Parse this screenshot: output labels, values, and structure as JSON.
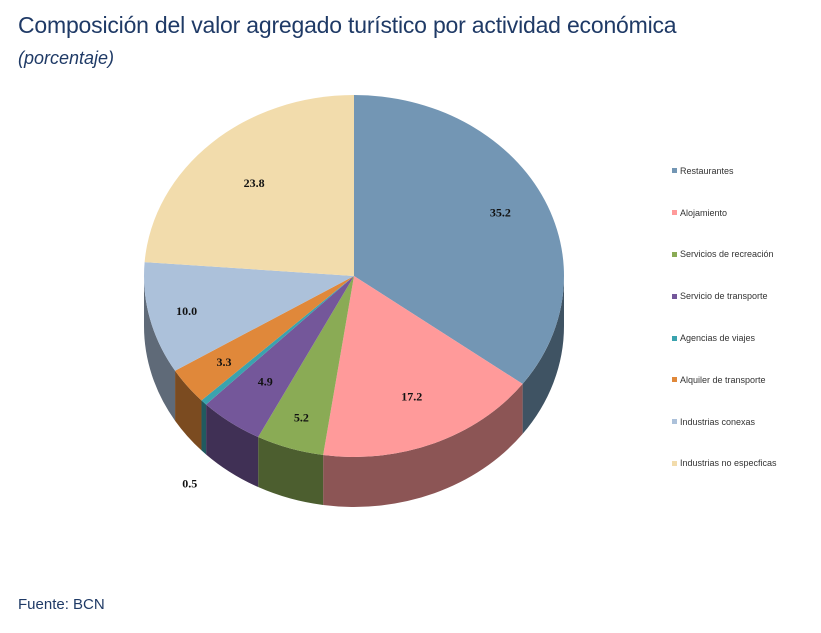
{
  "title": "Composición del valor agregado turístico por actividad económica",
  "subtitle": "(porcentaje)",
  "source": "Fuente: BCN",
  "chart_data": {
    "type": "pie",
    "title": "Composición del valor agregado turístico por actividad económica",
    "subtitle": "(porcentaje)",
    "legend_position": "right",
    "three_d": true,
    "categories": [
      "Restaurantes",
      "Alojamiento",
      "Servicios de recreación",
      "Servicio de transporte",
      "Agencias de viajes",
      "Alquiler de transporte",
      "Industrias conexas",
      "Industrias no especficas"
    ],
    "values": [
      35.2,
      17.2,
      5.2,
      4.9,
      0.5,
      3.3,
      10.0,
      23.8
    ],
    "labels": [
      "35.2",
      "17.2",
      "5.2",
      "4.9",
      "0.5",
      "3.3",
      "10.0",
      "23.8"
    ],
    "colors": [
      "#7396b4",
      "#ff9a9a",
      "#8aab55",
      "#74579a",
      "#3aa3ae",
      "#e0883a",
      "#acc1da",
      "#f2dcac"
    ]
  }
}
